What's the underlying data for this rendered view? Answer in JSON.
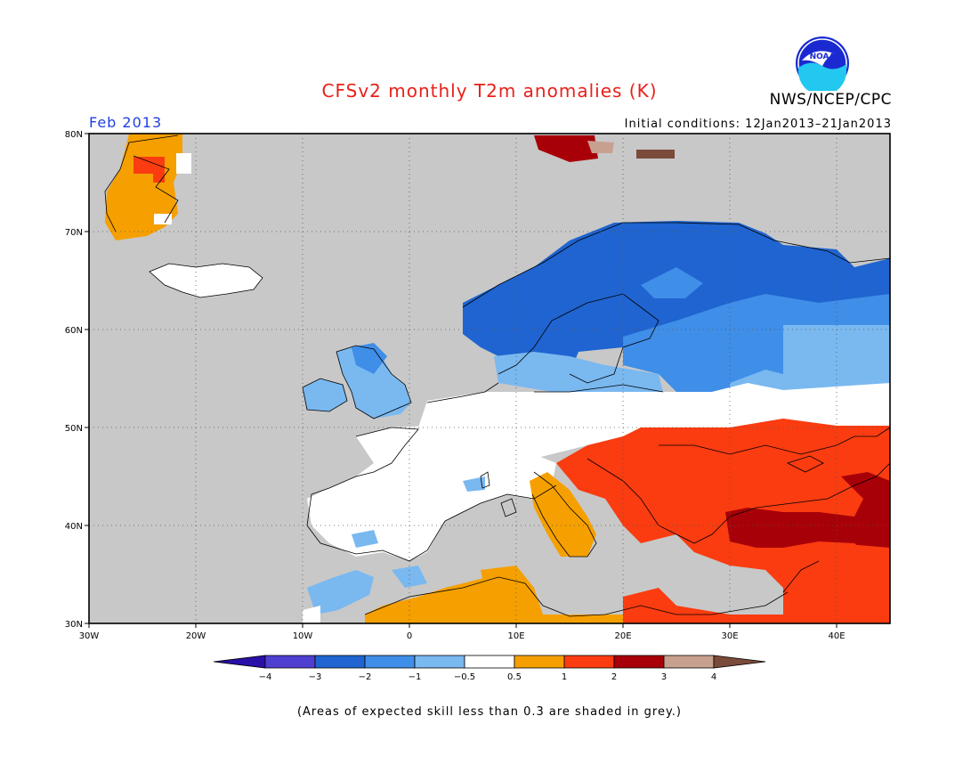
{
  "header": {
    "title": "CFSv2 monthly T2m anomalies (K)",
    "org": "NWS/NCEP/CPC",
    "period": "Feb 2013",
    "initial_conditions": "Initial conditions: 12Jan2013–21Jan2013",
    "logo_text": "NOAA"
  },
  "axes": {
    "lat_labels": [
      "80N",
      "70N",
      "60N",
      "50N",
      "40N",
      "30N"
    ],
    "lon_labels": [
      "30W",
      "20W",
      "10W",
      "0",
      "10E",
      "20E",
      "30E",
      "40E"
    ]
  },
  "legend": {
    "ticks": [
      "−4",
      "−3",
      "−2",
      "−1",
      "−0.5",
      "0.5",
      "1",
      "2",
      "3",
      "4"
    ],
    "colors": [
      "#2a0fa8",
      "#4f3fd0",
      "#1f64d0",
      "#3f8ee8",
      "#7ab8f0",
      "#ffffff",
      "#f5a000",
      "#fa3c10",
      "#a80008",
      "#c8a090",
      "#7a4a3a"
    ]
  },
  "footnote": "(Areas of expected skill less than 0.3 are shaded in grey.)",
  "colors": {
    "skill_grey": "#c8c8c8",
    "title_red": "#e8201a",
    "period_blue": "#2040e0"
  }
}
